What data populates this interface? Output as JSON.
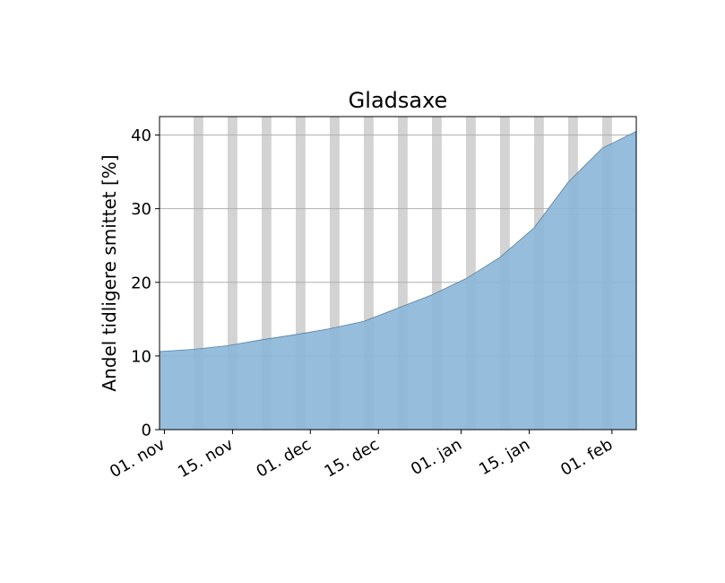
{
  "chart_data": {
    "type": "area",
    "title": "Gladsaxe",
    "xlabel": "",
    "ylabel": "Andel tidligere smittet [%]",
    "x_range": [
      "2020-10-31",
      "2021-02-06"
    ],
    "ylim": [
      0,
      42.5
    ],
    "yticks": [
      0,
      10,
      20,
      30,
      40
    ],
    "xticks": [
      {
        "date": "2020-11-01",
        "label": "01. nov"
      },
      {
        "date": "2020-11-15",
        "label": "15. nov"
      },
      {
        "date": "2020-12-01",
        "label": "01. dec"
      },
      {
        "date": "2020-12-15",
        "label": "15. dec"
      },
      {
        "date": "2021-01-01",
        "label": "01. jan"
      },
      {
        "date": "2021-01-15",
        "label": "15. jan"
      },
      {
        "date": "2021-02-01",
        "label": "01. feb"
      }
    ],
    "grid": "horizontal",
    "colors": {
      "fill": "#8bb7d8",
      "line": "#4e7fa6",
      "weekend_band": "#d3d3d3",
      "grid": "#b0b0b0"
    },
    "weekend_bands": [
      [
        "2020-11-07",
        "2020-11-09"
      ],
      [
        "2020-11-14",
        "2020-11-16"
      ],
      [
        "2020-11-21",
        "2020-11-23"
      ],
      [
        "2020-11-28",
        "2020-11-30"
      ],
      [
        "2020-12-05",
        "2020-12-07"
      ],
      [
        "2020-12-12",
        "2020-12-14"
      ],
      [
        "2020-12-19",
        "2020-12-21"
      ],
      [
        "2020-12-26",
        "2020-12-28"
      ],
      [
        "2021-01-02",
        "2021-01-04"
      ],
      [
        "2021-01-09",
        "2021-01-11"
      ],
      [
        "2021-01-16",
        "2021-01-18"
      ],
      [
        "2021-01-23",
        "2021-01-25"
      ],
      [
        "2021-01-30",
        "2021-02-01"
      ],
      [
        "2021-02-06",
        "2021-02-07"
      ]
    ],
    "series": [
      {
        "x": [
          "2020-10-31",
          "2020-11-07",
          "2020-11-14",
          "2020-11-21",
          "2020-11-28",
          "2020-12-05",
          "2020-12-12",
          "2020-12-19",
          "2020-12-26",
          "2021-01-01",
          "2021-01-02",
          "2021-01-09",
          "2021-01-16",
          "2021-01-23",
          "2021-01-30",
          "2021-02-06"
        ],
        "values": [
          10.6,
          10.9,
          11.4,
          12.2,
          12.9,
          13.7,
          14.7,
          16.5,
          18.3,
          20.2,
          20.5,
          23.4,
          27.4,
          33.6,
          38.2,
          40.5
        ]
      }
    ]
  }
}
